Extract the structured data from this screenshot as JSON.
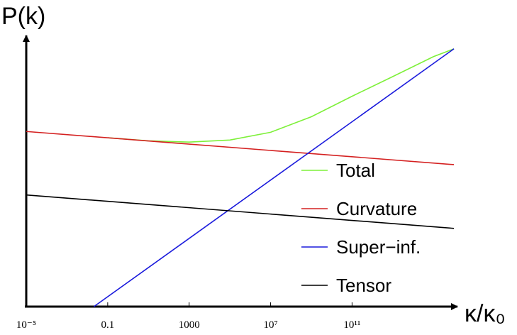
{
  "chart_data": {
    "type": "line",
    "ylabel": "P(k)",
    "xlabel": "κ/κ₀",
    "xscale": "log",
    "xlim": [
      1e-05,
      1e+16
    ],
    "ylim": [
      0,
      100
    ],
    "xticks": [
      {
        "value": 1e-05,
        "label": "10⁻⁵"
      },
      0.1,
      1000,
      {
        "value": 10000000.0,
        "label": "10⁷"
      },
      {
        "value": 100000000000.0,
        "label": "10¹¹"
      }
    ],
    "series": [
      {
        "name": "Total",
        "color": "#7ef03a",
        "x": [
          0.1,
          10,
          1000,
          100000,
          10000000.0,
          1000000000.0,
          100000000000.0,
          10000000000000.0,
          1000000000000000.0,
          1e+16
        ],
        "values": [
          65.2,
          64.0,
          63.5,
          64.3,
          67.3,
          73.3,
          81.2,
          88.8,
          96.5,
          99.5
        ]
      },
      {
        "name": "Curvature",
        "color": "#d42020",
        "x": [
          1e-05,
          1e+16
        ],
        "values": [
          67.6,
          54.8
        ]
      },
      {
        "name": "Super−inf.",
        "color": "#1a1adc",
        "x": [
          0.021,
          1e+16
        ],
        "values": [
          0,
          99.5
        ]
      },
      {
        "name": "Tensor",
        "color": "#000000",
        "x": [
          1e-05,
          1e+16
        ],
        "values": [
          43.1,
          30.2
        ]
      }
    ]
  }
}
